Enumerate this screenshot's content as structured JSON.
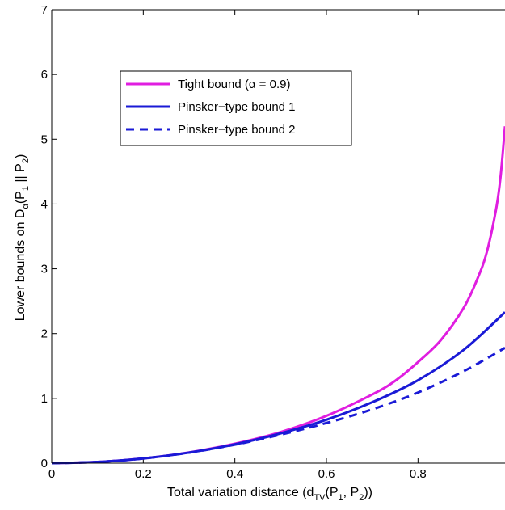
{
  "chart_data": {
    "type": "line",
    "xlabel": "Total variation distance (d_TV(P_1, P_2))",
    "ylabel": "Lower bounds on D_α(P_1 || P_2)",
    "xlim": [
      0,
      0.99
    ],
    "ylim": [
      0,
      7
    ],
    "x_ticks": [
      "0",
      "0.2",
      "0.4",
      "0.6",
      "0.8"
    ],
    "y_ticks": [
      "0",
      "1",
      "2",
      "3",
      "4",
      "5",
      "6",
      "7"
    ],
    "legend_position": "top-left",
    "series": [
      {
        "name": "Tight bound (α = 0.9)",
        "color": "#e01ee0",
        "style": "solid",
        "x": [
          0,
          0.1,
          0.2,
          0.3,
          0.4,
          0.5,
          0.6,
          0.7,
          0.75,
          0.8,
          0.85,
          0.9,
          0.93,
          0.95,
          0.97,
          0.98,
          0.99
        ],
        "y": [
          0,
          0.018,
          0.073,
          0.166,
          0.3,
          0.48,
          0.73,
          1.06,
          1.27,
          1.56,
          1.9,
          2.4,
          2.85,
          3.25,
          3.9,
          4.4,
          5.2
        ]
      },
      {
        "name": "Pinsker−type bound 1",
        "color": "#1a1ad6",
        "style": "solid",
        "x": [
          0,
          0.1,
          0.2,
          0.3,
          0.4,
          0.5,
          0.6,
          0.7,
          0.8,
          0.9,
          0.99
        ],
        "y": [
          0,
          0.018,
          0.072,
          0.163,
          0.29,
          0.46,
          0.67,
          0.94,
          1.28,
          1.75,
          2.33
        ]
      },
      {
        "name": "Pinsker−type bound 2",
        "color": "#1a1ad6",
        "style": "dashed",
        "x": [
          0,
          0.1,
          0.2,
          0.3,
          0.4,
          0.5,
          0.6,
          0.7,
          0.8,
          0.9,
          0.99
        ],
        "y": [
          0,
          0.018,
          0.072,
          0.162,
          0.285,
          0.44,
          0.62,
          0.83,
          1.09,
          1.42,
          1.78
        ]
      }
    ]
  },
  "labels": {
    "x_main": "Total variation distance (d",
    "x_sub1": "TV",
    "x_mid1": "(P",
    "x_sub2": "1",
    "x_mid2": ", P",
    "x_sub3": "2",
    "x_end": "))",
    "y_main": "Lower bounds on D",
    "y_sub1": "α",
    "y_mid1": "(P",
    "y_sub2": "1",
    "y_mid2": " || P",
    "y_sub3": "2",
    "y_end": ")"
  }
}
